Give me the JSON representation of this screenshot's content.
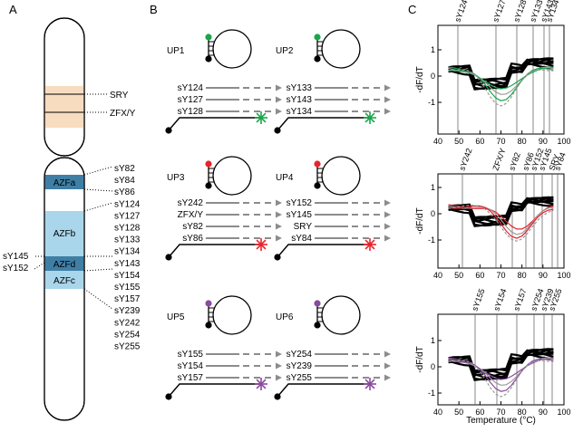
{
  "panels": {
    "a_label": "A",
    "b_label": "B",
    "c_label": "C"
  },
  "chromosome": {
    "upper_labels": [
      "SRY",
      "ZFX/Y"
    ],
    "azf_regions": [
      "AZFa",
      "AZFb",
      "AZFd",
      "AZFc"
    ],
    "markers_right": [
      "sY82",
      "sY84",
      "sY86",
      "sY124",
      "sY127",
      "sY128",
      "sY133",
      "sY134",
      "sY143",
      "sY154",
      "sY155",
      "sY157",
      "sY239",
      "sY242",
      "sY254",
      "sY255"
    ],
    "markers_left": [
      "sY145",
      "sY152"
    ],
    "colors": {
      "band": "#f8dcbf",
      "azf_dark": "#3f7fa6",
      "azf_light": "#a9d6ea"
    }
  },
  "probes": [
    {
      "name": "UP1",
      "primers": [
        "sY124",
        "sY127",
        "sY128"
      ],
      "color": "#1aa64b"
    },
    {
      "name": "UP2",
      "primers": [
        "sY133",
        "sY143",
        "sY134"
      ],
      "color": "#1aa64b"
    },
    {
      "name": "UP3",
      "primers": [
        "sY242",
        "ZFX/Y",
        "sY82",
        "sY86"
      ],
      "color": "#e8242b"
    },
    {
      "name": "UP4",
      "primers": [
        "sY152",
        "sY145",
        "SRY",
        "sY84"
      ],
      "color": "#e8242b"
    },
    {
      "name": "UP5",
      "primers": [
        "sY155",
        "sY154",
        "sY157"
      ],
      "color": "#8a4a9e"
    },
    {
      "name": "UP6",
      "primers": [
        "sY254",
        "sY239",
        "sY255"
      ],
      "color": "#8a4a9e"
    }
  ],
  "melt_plots": [
    {
      "markers": [
        "sY124",
        "sY127",
        "sY128",
        "sY133",
        "sY143",
        "sY134"
      ],
      "ylabel": "-dF/dT",
      "color": "#1aa64b"
    },
    {
      "markers": [
        "sY242",
        "ZFX/Y",
        "sY82",
        "sY86",
        "sY152",
        "sY145",
        "SRY",
        "sY84"
      ],
      "ylabel": "-dF/dT",
      "color": "#e8242b"
    },
    {
      "markers": [
        "sY155",
        "sY154",
        "sY157",
        "sY254",
        "sY239",
        "sY255"
      ],
      "ylabel": "-dF/dT",
      "color": "#8a4a9e"
    }
  ],
  "melt_axes": {
    "xlabel": "Temperature (°C)",
    "xticks": [
      "40",
      "50",
      "60",
      "70",
      "80",
      "90",
      "100"
    ],
    "yticks": [
      "1",
      "0",
      "-1"
    ]
  }
}
